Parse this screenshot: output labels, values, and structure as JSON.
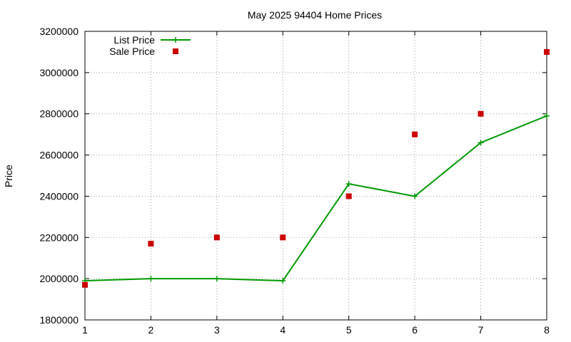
{
  "chart_data": {
    "type": "line",
    "title": "May 2025 94404 Home Prices",
    "xlabel": "",
    "ylabel": "Price",
    "xlim": [
      1,
      8
    ],
    "ylim": [
      1800000,
      3200000
    ],
    "x_ticks": [
      "1",
      "2",
      "3",
      "4",
      "5",
      "6",
      "7",
      "8"
    ],
    "y_ticks": [
      "1800000",
      "2000000",
      "2200000",
      "2400000",
      "2600000",
      "2800000",
      "3000000",
      "3200000"
    ],
    "grid": true,
    "legend_position": "top-left",
    "x": [
      1,
      2,
      3,
      4,
      5,
      6,
      7,
      8
    ],
    "series": [
      {
        "name": "List Price",
        "style": "line-with-plus-markers",
        "color": "#009900",
        "values": [
          1990000,
          2000000,
          2000000,
          1990000,
          2460000,
          2400000,
          2660000,
          2790000
        ]
      },
      {
        "name": "Sale Price",
        "style": "square-points",
        "color": "#cc0000",
        "values": [
          1970000,
          2170000,
          2200000,
          2200000,
          2400000,
          2700000,
          2800000,
          3100000
        ]
      }
    ]
  }
}
